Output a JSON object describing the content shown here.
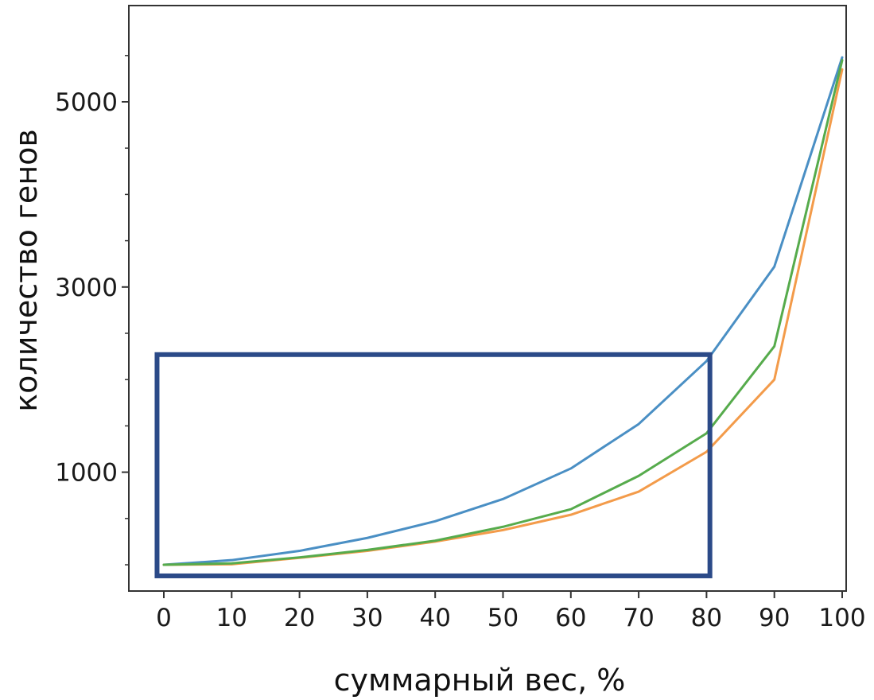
{
  "chart_data": {
    "type": "line",
    "xlabel": "суммарный вес, %",
    "ylabel": "количество генов",
    "x": [
      0,
      10,
      20,
      30,
      40,
      50,
      60,
      70,
      80,
      90,
      100
    ],
    "xticks": [
      "0",
      "10",
      "20",
      "30",
      "40",
      "50",
      "60",
      "70",
      "80",
      "90",
      "100"
    ],
    "yticks": [
      "1000",
      "3000",
      "5000"
    ],
    "ytick_values": [
      1000,
      3000,
      5000
    ],
    "xlim": [
      -4,
      100
    ],
    "ylim": [
      0,
      6000
    ],
    "grid": false,
    "series": [
      {
        "color": "#4a8fc4",
        "values": [
          0,
          50,
          150,
          290,
          470,
          710,
          1040,
          1520,
          2200,
          3220,
          5480
        ]
      },
      {
        "color": "#f39b4a",
        "values": [
          0,
          5,
          75,
          150,
          250,
          375,
          540,
          790,
          1220,
          2000,
          5350
        ]
      },
      {
        "color": "#56ab4c",
        "values": [
          0,
          15,
          80,
          160,
          260,
          410,
          600,
          960,
          1420,
          2360,
          5450
        ]
      }
    ],
    "annotations": [
      {
        "type": "highlight-rectangle",
        "color": "#2b4a88",
        "x_range": [
          -1,
          80.5
        ],
        "y_range": [
          -120,
          2270
        ]
      }
    ]
  }
}
